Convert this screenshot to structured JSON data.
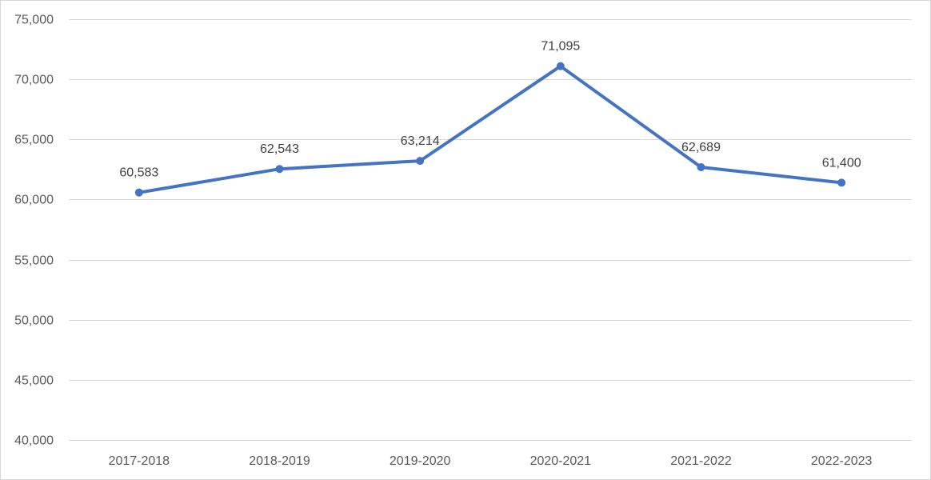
{
  "chart_data": {
    "type": "line",
    "title": "",
    "xlabel": "",
    "ylabel": "",
    "categories": [
      "2017-2018",
      "2018-2019",
      "2019-2020",
      "2020-2021",
      "2021-2022",
      "2022-2023"
    ],
    "series": [
      {
        "values": [
          60583,
          62543,
          63214,
          71095,
          62689,
          61400
        ],
        "color": "#4472c4",
        "data_labels": [
          "60,583",
          "62,543",
          "63,214",
          "71,095",
          "62,689",
          "61,400"
        ]
      }
    ],
    "ylim": [
      40000,
      75000
    ],
    "y_ticks": [
      40000,
      45000,
      50000,
      55000,
      60000,
      65000,
      70000,
      75000
    ],
    "y_tick_labels": [
      "40,000",
      "45,000",
      "50,000",
      "55,000",
      "60,000",
      "65,000",
      "70,000",
      "75,000"
    ],
    "grid": true,
    "legend": "none",
    "colors": {
      "line": "#4472c4",
      "grid": "#d9d9d9",
      "axis_text": "#595959",
      "label_text": "#404040"
    }
  }
}
